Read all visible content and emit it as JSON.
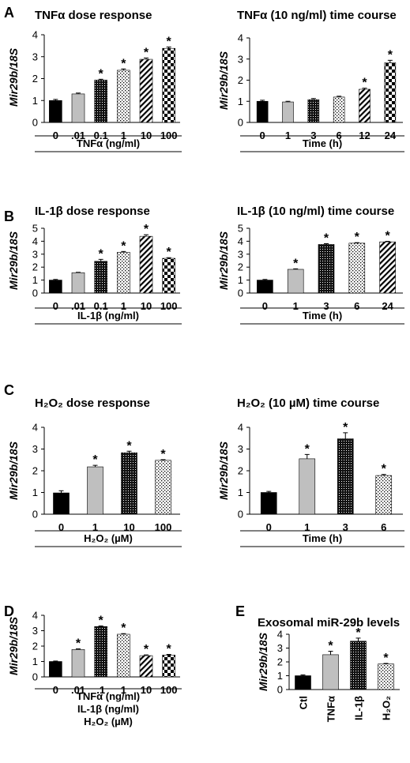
{
  "chart_data": [
    {
      "id": "A1",
      "panel_letter": "A",
      "type": "bar",
      "title": "TNFα dose response",
      "ylabel": "Mir29b/18S",
      "ylim": [
        0,
        4
      ],
      "yticks": [
        0,
        1,
        2,
        3,
        4
      ],
      "categories": [
        "0",
        ".01",
        "0.1",
        "1",
        "10",
        "100"
      ],
      "values": [
        1.0,
        1.3,
        1.93,
        2.38,
        2.88,
        3.38
      ],
      "errors": [
        0.05,
        0.04,
        0.04,
        0.06,
        0.06,
        0.06
      ],
      "significant": [
        false,
        false,
        true,
        true,
        true,
        true
      ],
      "patterns": [
        "solid",
        "gray",
        "dense",
        "dots",
        "diag",
        "checker"
      ],
      "xlabel_lines": [
        "TNFα (ng/ml)"
      ]
    },
    {
      "id": "A2",
      "type": "bar",
      "title": "TNFα (10 ng/ml) time course",
      "ylabel": "Mir29b/18S",
      "ylim": [
        0,
        4
      ],
      "yticks": [
        0,
        1,
        2,
        3,
        4
      ],
      "categories": [
        "0",
        "1",
        "3",
        "6",
        "12",
        "24"
      ],
      "values": [
        1.0,
        0.97,
        1.08,
        1.2,
        1.57,
        2.82
      ],
      "errors": [
        0.05,
        0.03,
        0.05,
        0.04,
        0.05,
        0.12
      ],
      "significant": [
        false,
        false,
        false,
        false,
        true,
        true
      ],
      "patterns": [
        "solid",
        "gray",
        "dense",
        "dots",
        "diag",
        "checker"
      ],
      "xlabel_lines": [
        "Time (h)"
      ]
    },
    {
      "id": "B1",
      "panel_letter": "B",
      "type": "bar",
      "title": "IL-1β dose response",
      "ylabel": "Mir29b/18S",
      "ylim": [
        0,
        5
      ],
      "yticks": [
        0,
        1,
        2,
        3,
        4,
        5
      ],
      "categories": [
        "0",
        ".01",
        "0.1",
        "1",
        "10",
        "100"
      ],
      "values": [
        1.0,
        1.57,
        2.45,
        3.15,
        4.38,
        2.68
      ],
      "errors": [
        0.05,
        0.03,
        0.15,
        0.06,
        0.12,
        0.05
      ],
      "significant": [
        false,
        false,
        true,
        true,
        true,
        true
      ],
      "patterns": [
        "solid",
        "gray",
        "dense",
        "dots",
        "diag",
        "checker"
      ],
      "xlabel_lines": [
        "IL-1β (ng/ml)"
      ]
    },
    {
      "id": "B2",
      "type": "bar",
      "title": "IL-1β (10 ng/ml) time course",
      "ylabel": "Mir29b/18S",
      "ylim": [
        0,
        5
      ],
      "yticks": [
        0,
        1,
        2,
        3,
        4,
        5
      ],
      "categories": [
        "0",
        "1",
        "3",
        "6",
        "24"
      ],
      "values": [
        1.0,
        1.83,
        3.75,
        3.85,
        3.95
      ],
      "errors": [
        0.05,
        0.04,
        0.06,
        0.04,
        0.04
      ],
      "significant": [
        false,
        true,
        true,
        true,
        true
      ],
      "patterns": [
        "solid",
        "gray",
        "dense",
        "dots",
        "diag"
      ],
      "xlabel_lines": [
        "Time (h)"
      ]
    },
    {
      "id": "C1",
      "panel_letter": "C",
      "type": "bar",
      "title": "H₂O₂ dose response",
      "ylabel": "Mir29b/18S",
      "ylim": [
        0,
        4
      ],
      "yticks": [
        0,
        1,
        2,
        3,
        4
      ],
      "categories": [
        "0",
        "1",
        "10",
        "100"
      ],
      "values": [
        0.98,
        2.18,
        2.83,
        2.48
      ],
      "errors": [
        0.1,
        0.07,
        0.07,
        0.03
      ],
      "significant": [
        false,
        true,
        true,
        true
      ],
      "patterns": [
        "solid",
        "gray",
        "dense",
        "dots"
      ],
      "xlabel_lines": [
        "H₂O₂ (µM)"
      ]
    },
    {
      "id": "C2",
      "type": "bar",
      "title": "H₂O₂ (10 µM) time course",
      "ylabel": "Mir29b/18S",
      "ylim": [
        0,
        4
      ],
      "yticks": [
        0,
        1,
        2,
        3,
        4
      ],
      "categories": [
        "0",
        "1",
        "3",
        "6"
      ],
      "values": [
        1.0,
        2.55,
        3.47,
        1.78
      ],
      "errors": [
        0.05,
        0.2,
        0.28,
        0.05
      ],
      "significant": [
        false,
        true,
        true,
        true
      ],
      "patterns": [
        "solid",
        "gray",
        "dense",
        "dots"
      ],
      "xlabel_lines": [
        "Time (h)"
      ]
    },
    {
      "id": "D",
      "panel_letter": "D",
      "type": "bar",
      "title": "",
      "ylabel": "Mir29b/18S",
      "ylim": [
        0,
        4
      ],
      "yticks": [
        0,
        1,
        2,
        3,
        4
      ],
      "categories": [
        "0",
        ".01",
        ".1",
        "1",
        "10",
        "100"
      ],
      "values": [
        1.0,
        1.78,
        3.27,
        2.77,
        1.38,
        1.42
      ],
      "errors": [
        0.03,
        0.04,
        0.04,
        0.04,
        0.05,
        0.04
      ],
      "significant": [
        false,
        true,
        true,
        true,
        true,
        true
      ],
      "patterns": [
        "solid",
        "gray",
        "dense",
        "dots",
        "diag",
        "checker"
      ],
      "xlabel_lines": [
        "TNFα (ng/ml)",
        "IL-1β (ng/ml)",
        "H₂O₂ (µM)"
      ]
    },
    {
      "id": "E",
      "panel_letter": "E",
      "type": "bar",
      "title": "Exosomal miR-29b levels",
      "ylabel": "Mir29b/18S",
      "ylim": [
        0,
        4
      ],
      "yticks": [
        0,
        1,
        2,
        3,
        4
      ],
      "categories": [
        "Ctl",
        "TNFα",
        "IL-1β",
        "H₂O₂"
      ],
      "values": [
        1.0,
        2.52,
        3.5,
        1.85
      ],
      "errors": [
        0.06,
        0.25,
        0.22,
        0.04
      ],
      "significant": [
        false,
        true,
        true,
        true
      ],
      "patterns": [
        "solid",
        "gray",
        "dense",
        "dots"
      ],
      "xlabel_lines": [],
      "rotated_categories": true
    }
  ],
  "significance_marker": "*",
  "colors": {
    "ink": "#000000",
    "gray_bar": "#bfbfbf"
  }
}
